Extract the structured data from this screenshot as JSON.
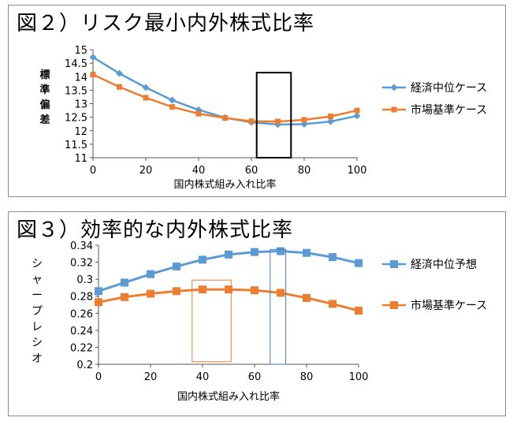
{
  "figures": [
    {
      "title": "図２）リスク最小内外株式比率"
    },
    {
      "title": "図３）効率的な内外株式比率"
    }
  ],
  "chart_data": [
    {
      "type": "line",
      "title": "図２）リスク最小内外株式比率",
      "xlabel": "国内株式組み入れ比率",
      "ylabel": "標準偏差",
      "x": [
        0,
        10,
        20,
        30,
        40,
        50,
        60,
        70,
        80,
        90,
        100
      ],
      "xlim": [
        0,
        100
      ],
      "xticks": [
        0,
        20,
        40,
        60,
        80,
        100
      ],
      "ylim": [
        11,
        15
      ],
      "yticks": [
        11,
        11.5,
        12,
        12.5,
        13,
        13.5,
        14,
        14.5,
        15
      ],
      "grid": false,
      "legend_position": "right",
      "series": [
        {
          "name": "経済中位ケース",
          "color": "#5b9bd5",
          "marker": "diamond",
          "values": [
            14.72,
            14.12,
            13.6,
            13.13,
            12.77,
            12.48,
            12.31,
            12.23,
            12.24,
            12.34,
            12.55
          ]
        },
        {
          "name": "市場基準ケース",
          "color": "#ed7d31",
          "marker": "square",
          "values": [
            14.08,
            13.62,
            13.22,
            12.88,
            12.63,
            12.47,
            12.35,
            12.34,
            12.4,
            12.53,
            12.75
          ]
        }
      ],
      "annotations": [
        {
          "shape": "rectangle",
          "color": "#000000",
          "x_range": [
            62,
            75
          ],
          "y_range": [
            11,
            14.15
          ]
        }
      ]
    },
    {
      "type": "line",
      "title": "図３）効率的な内外株式比率",
      "xlabel": "国内株式組み入れ比率",
      "ylabel": "シャープレシオ",
      "x": [
        0,
        10,
        20,
        30,
        40,
        50,
        60,
        70,
        80,
        90,
        100
      ],
      "xlim": [
        0,
        100
      ],
      "xticks": [
        0,
        20,
        40,
        60,
        80,
        100
      ],
      "ylim": [
        0.2,
        0.34
      ],
      "yticks": [
        0.2,
        0.22,
        0.24,
        0.26,
        0.28,
        0.3,
        0.32,
        0.34
      ],
      "grid": false,
      "legend_position": "right",
      "series": [
        {
          "name": "経済中位予想",
          "color": "#5b9bd5",
          "marker": "square",
          "values": [
            0.286,
            0.296,
            0.306,
            0.315,
            0.323,
            0.329,
            0.332,
            0.333,
            0.331,
            0.326,
            0.319
          ]
        },
        {
          "name": "市場基準ケース",
          "color": "#ed7d31",
          "marker": "square",
          "values": [
            0.273,
            0.279,
            0.283,
            0.286,
            0.288,
            0.288,
            0.287,
            0.284,
            0.278,
            0.271,
            0.263
          ]
        }
      ],
      "annotations": [
        {
          "shape": "rectangle",
          "color": "#ed7d31",
          "x_range": [
            36,
            51
          ],
          "y_range": [
            0.203,
            0.299
          ]
        },
        {
          "shape": "rectangle",
          "color": "#4a7ab0",
          "x_range": [
            66,
            72
          ],
          "y_range": [
            0.2,
            0.335
          ]
        }
      ]
    }
  ]
}
